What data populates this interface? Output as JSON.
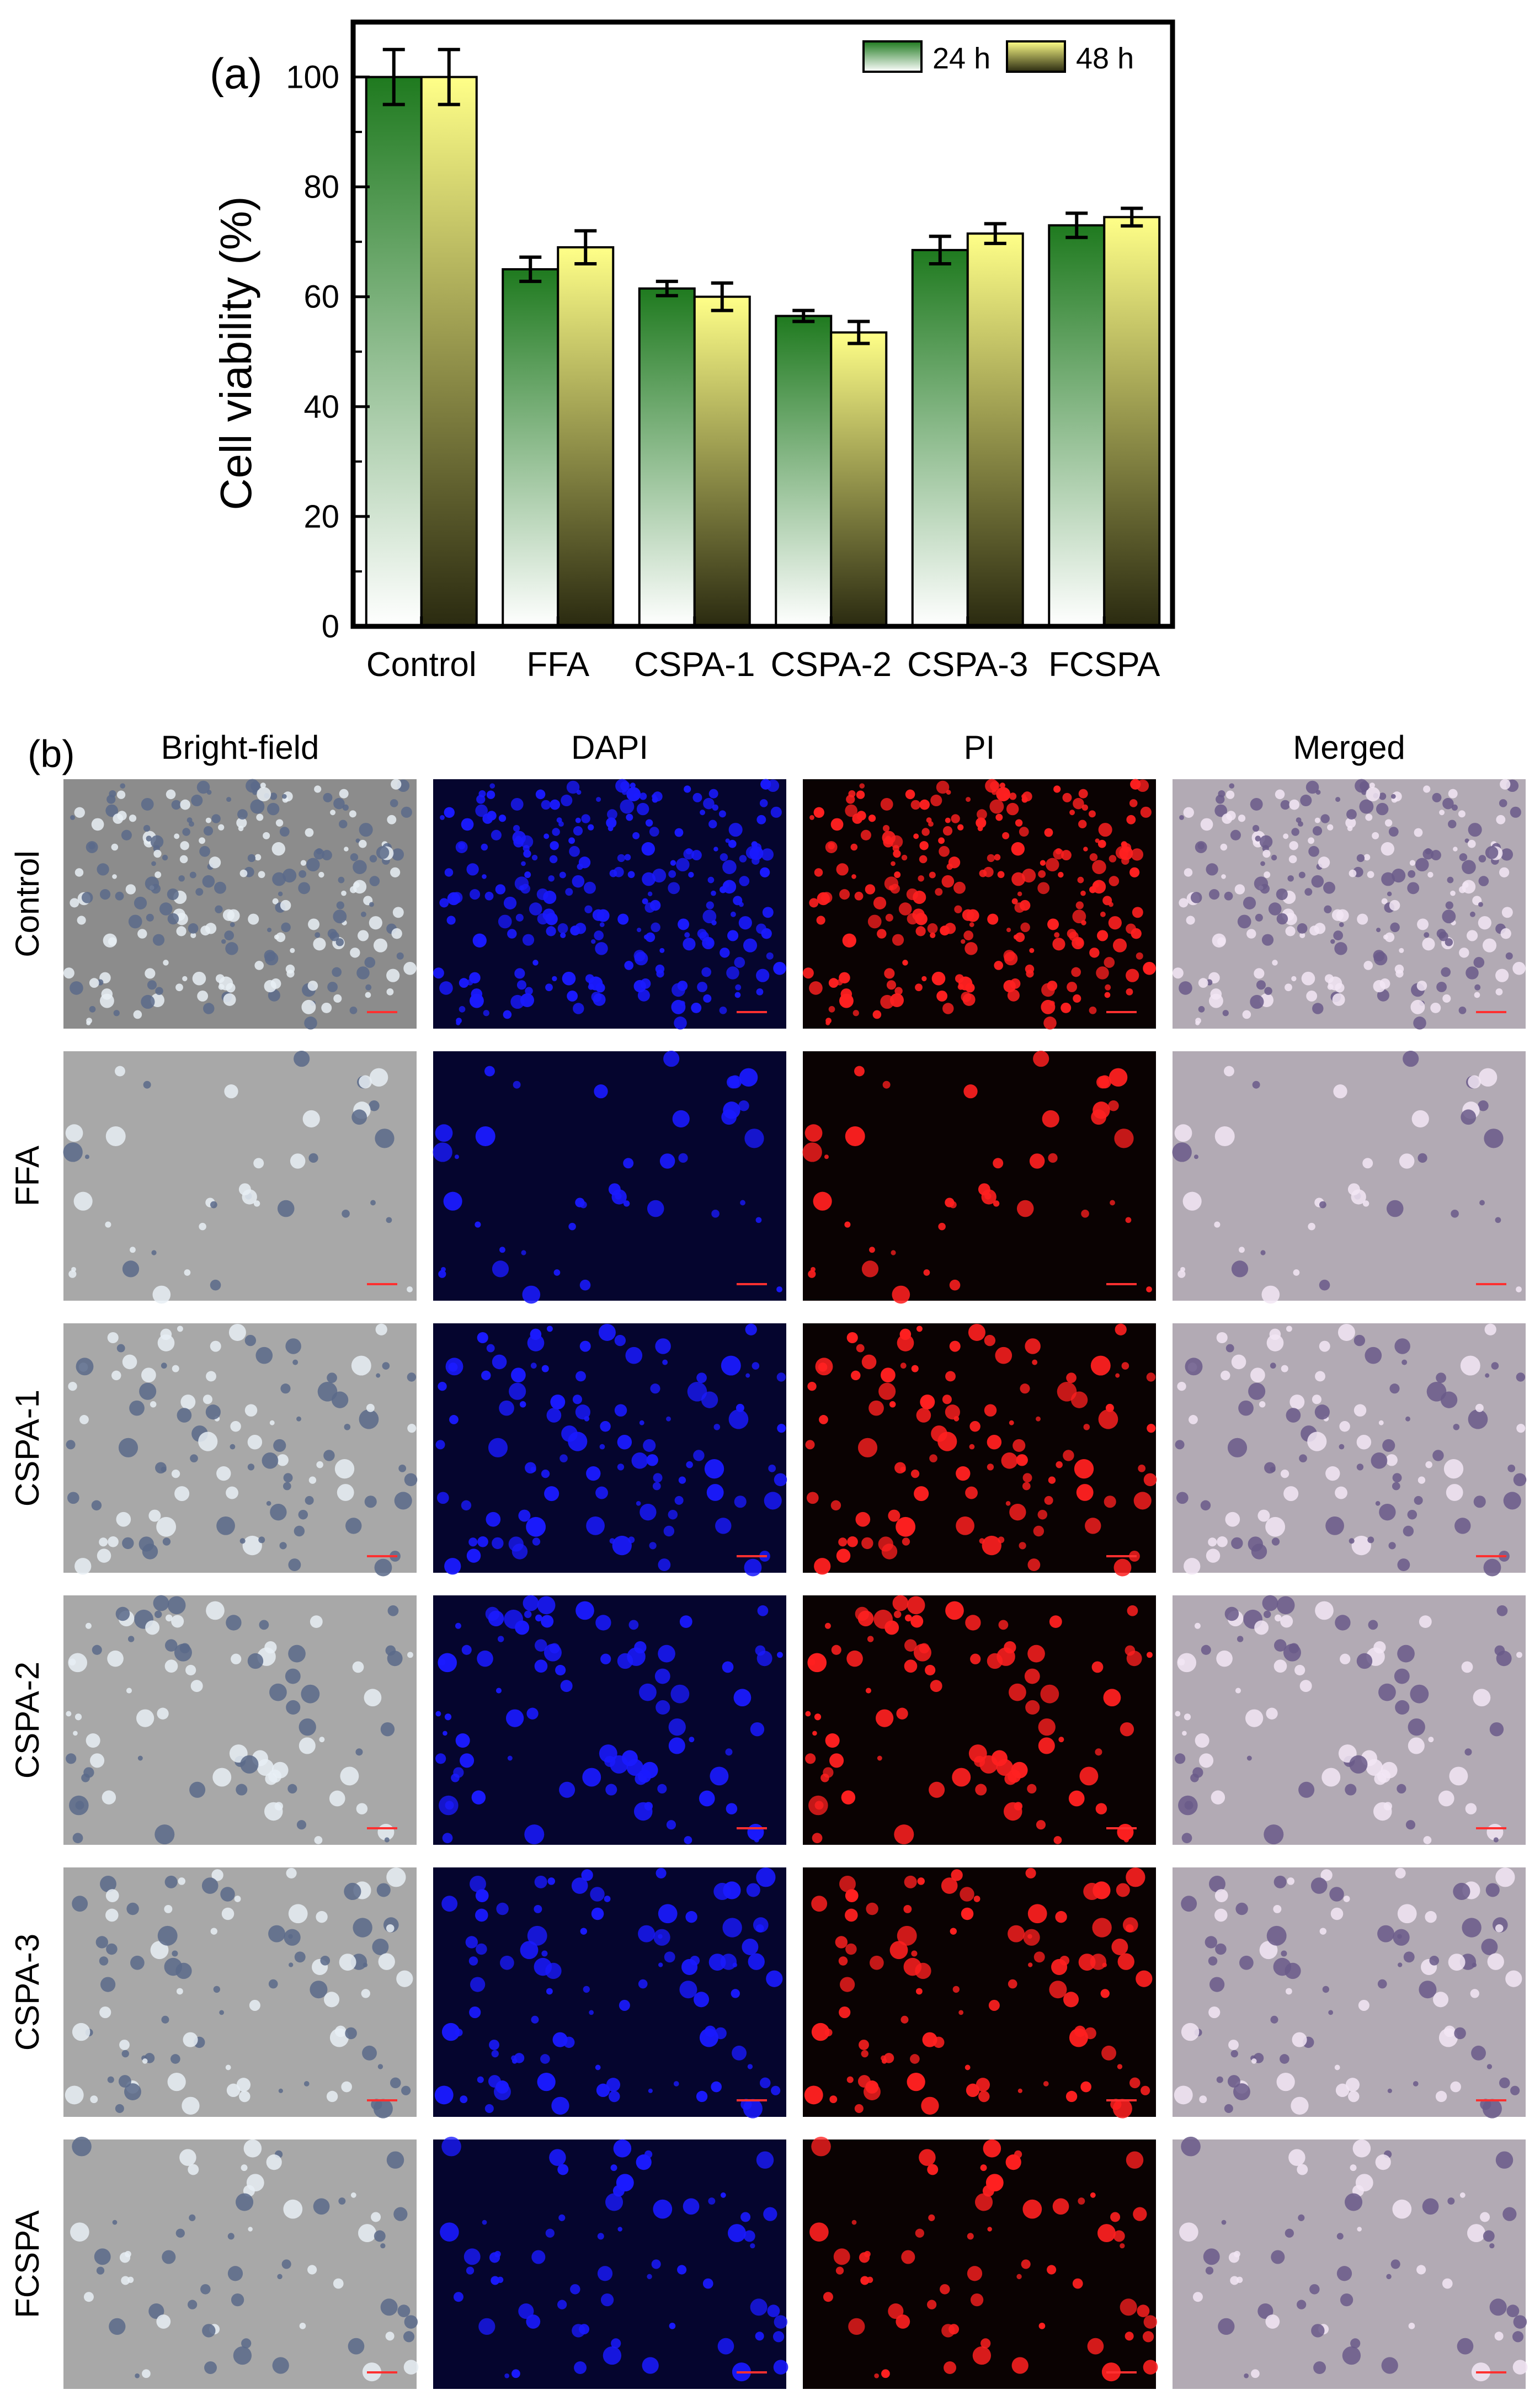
{
  "panel_labels": {
    "a": "(a)",
    "b": "(b)"
  },
  "chart_data": {
    "type": "bar",
    "categories": [
      "Control",
      "FFA",
      "CSPA-1",
      "CSPA-2",
      "CSPA-3",
      "FCSPA"
    ],
    "series": [
      {
        "name": "24 h",
        "values": [
          100,
          65,
          61.5,
          56.5,
          68.5,
          73
        ],
        "errors": [
          5,
          2.2,
          1.3,
          1.0,
          2.5,
          2.2
        ],
        "color_top": "#1f7a1f",
        "color_bottom": "#ffffff"
      },
      {
        "name": "48 h",
        "values": [
          100,
          69,
          60,
          53.5,
          71.5,
          74.5
        ],
        "errors": [
          5,
          3.0,
          2.5,
          2.0,
          1.8,
          1.6
        ],
        "color_top": "#ffff88",
        "color_bottom": "#2a2a10"
      }
    ],
    "ylabel": "Cell viability (%)",
    "xlabel": "",
    "ylim": [
      0,
      110
    ],
    "yticks": [
      0,
      20,
      40,
      60,
      80,
      100
    ],
    "legend_position": "top-right",
    "grid": false
  },
  "micrograph_grid": {
    "columns": [
      "Bright-field",
      "DAPI",
      "PI",
      "Merged"
    ],
    "rows": [
      "Control",
      "FFA",
      "CSPA-1",
      "CSPA-2",
      "CSPA-3",
      "FCSPA"
    ],
    "channel_colors": {
      "Bright-field": "#9a9a9a",
      "DAPI": "#1a1aff",
      "PI": "#ff2020",
      "Merged": "#a9a0b0"
    },
    "cell_density": [
      0.9,
      0.12,
      0.35,
      0.28,
      0.32,
      0.2
    ]
  }
}
